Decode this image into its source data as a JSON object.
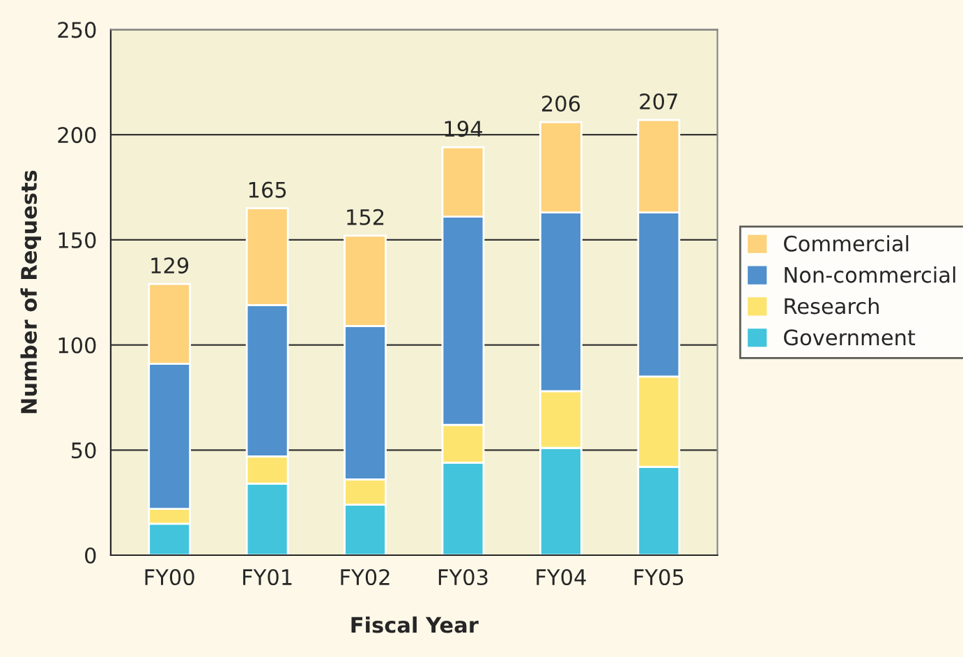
{
  "chart_data": {
    "type": "bar",
    "stacked": true,
    "xlabel": "Fiscal Year",
    "ylabel": "Number of Requests",
    "categories": [
      "FY00",
      "FY01",
      "FY02",
      "FY03",
      "FY04",
      "FY05"
    ],
    "series": [
      {
        "name": "Government",
        "color": "#42c4dc",
        "values": [
          15,
          34,
          24,
          44,
          51,
          42
        ]
      },
      {
        "name": "Research",
        "color": "#fde46e",
        "values": [
          7,
          13,
          12,
          18,
          27,
          43
        ]
      },
      {
        "name": "Non-commercial",
        "color": "#5090cc",
        "values": [
          69,
          72,
          73,
          99,
          85,
          78
        ]
      },
      {
        "name": "Commercial",
        "color": "#fdd27a",
        "values": [
          38,
          46,
          43,
          33,
          43,
          44
        ]
      }
    ],
    "totals": [
      "129",
      "165",
      "152",
      "194",
      "206",
      "207"
    ],
    "ylim": [
      0,
      250
    ],
    "yticks": [
      0,
      50,
      100,
      150,
      200,
      250
    ],
    "grid": "y",
    "legend": "right"
  }
}
